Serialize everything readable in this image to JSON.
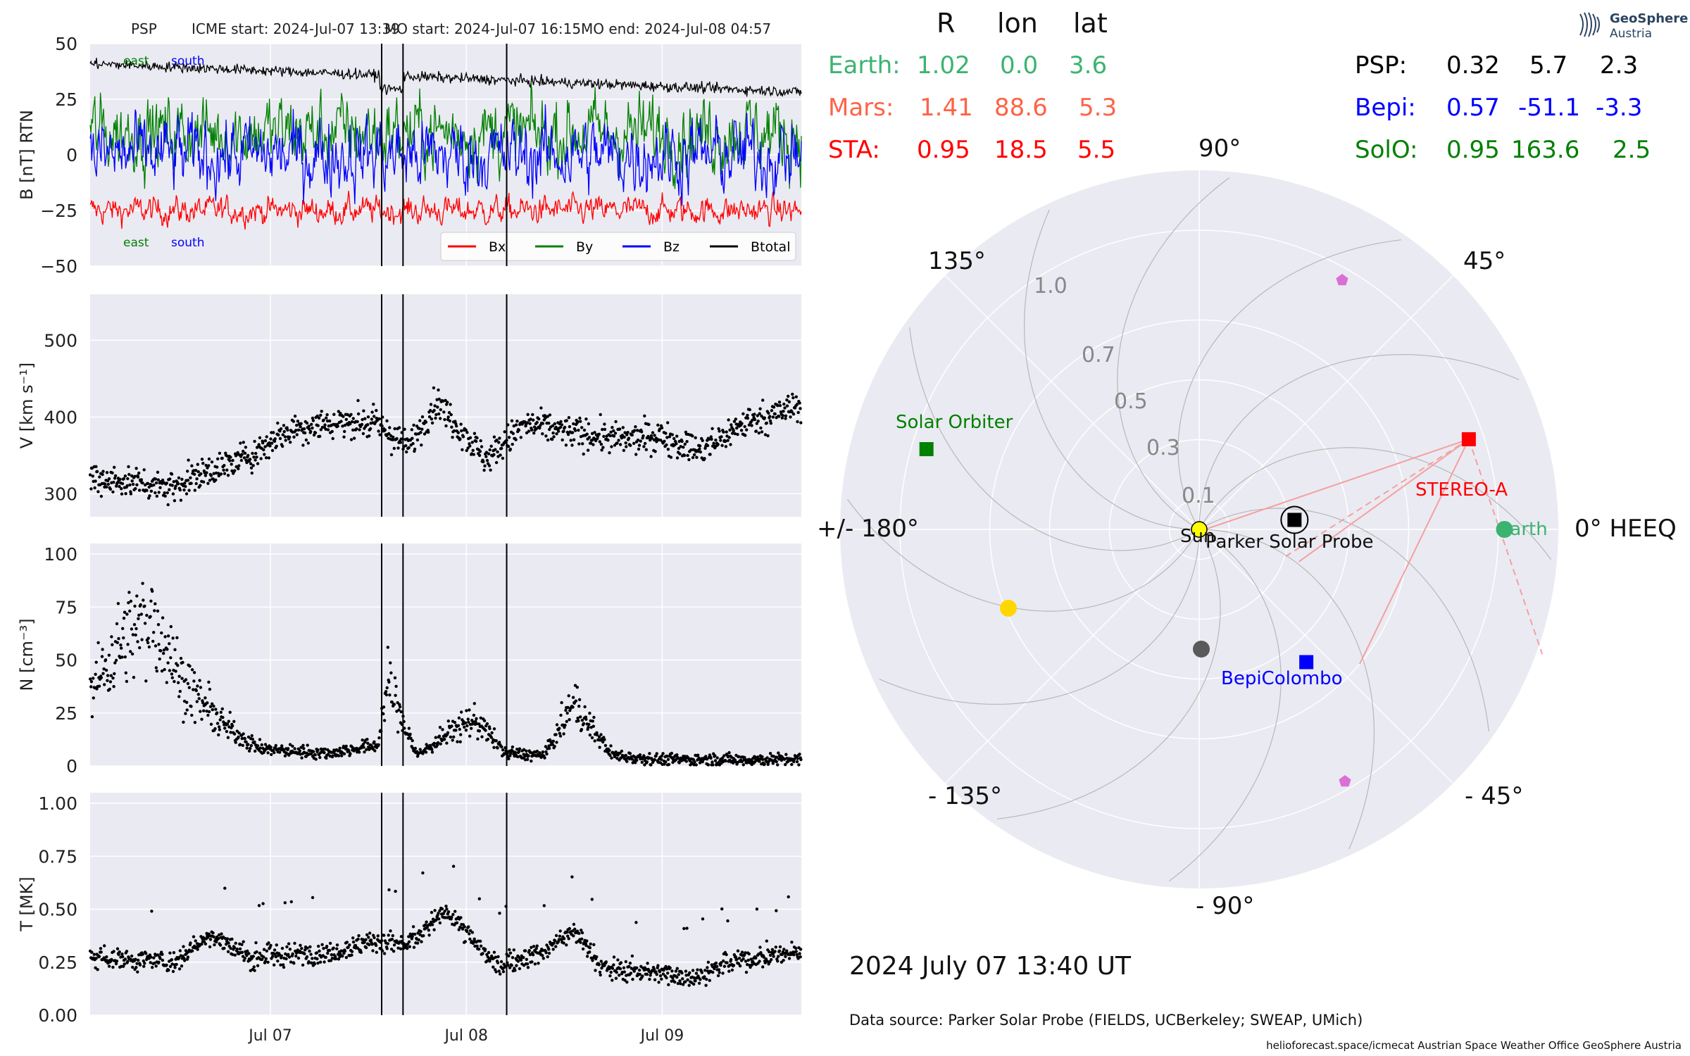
{
  "header": {
    "spacecraft": "PSP",
    "icme_start": "ICME start: 2024-Jul-07 13:39",
    "mo_start": "MO start: 2024-Jul-07 16:15",
    "mo_end": "MO end: 2024-Jul-08 04:57"
  },
  "logo": {
    "line1": "GeoSphere",
    "line2": "Austria"
  },
  "colors": {
    "bx": "#ff0000",
    "by": "#008000",
    "bz": "#0000ff",
    "btotal": "#000000",
    "panel_bg": "#eaeaf2",
    "grid": "#ffffff",
    "earth": "#3cb371",
    "mars": "#ff6347",
    "sta": "#ff0000",
    "psp": "#000000",
    "bepi": "#0000ff",
    "solo": "#008000",
    "sun": "#ffff00"
  },
  "chart_data": [
    {
      "type": "line",
      "id": "mag",
      "ylabel": "B [nT] RTN",
      "ylim": [
        -50,
        50
      ],
      "yticks": [
        "50",
        "25",
        "0",
        "−25",
        "−50"
      ],
      "ytick_values": [
        50,
        25,
        0,
        -25,
        -50
      ],
      "xlim_days": [
        6.08,
        9.71
      ],
      "series": [
        {
          "name": "Bx",
          "color": "#ff0000",
          "level": -25
        },
        {
          "name": "By",
          "color": "#008000",
          "level": 10
        },
        {
          "name": "Bz",
          "color": "#0000ff",
          "level": 0
        },
        {
          "name": "Btotal",
          "color": "#000000",
          "level": 40
        }
      ],
      "annotations": {
        "east_top": "east",
        "south_top": "south",
        "east_bottom": "east",
        "south_bottom": "south"
      },
      "legend": "lower-right"
    },
    {
      "type": "scatter",
      "id": "vel",
      "ylabel": "V [km s⁻¹]",
      "ylim": [
        270,
        560
      ],
      "yticks": [
        "500",
        "400",
        "300"
      ],
      "ytick_values": [
        500,
        400,
        300
      ],
      "trend": [
        [
          6.08,
          320
        ],
        [
          6.5,
          310
        ],
        [
          6.9,
          350
        ],
        [
          7.1,
          385
        ],
        [
          7.4,
          395
        ],
        [
          7.55,
          390
        ],
        [
          7.7,
          360
        ],
        [
          7.85,
          420
        ],
        [
          8.1,
          345
        ],
        [
          8.3,
          390
        ],
        [
          8.55,
          380
        ],
        [
          8.8,
          370
        ],
        [
          9.0,
          375
        ],
        [
          9.2,
          355
        ],
        [
          9.4,
          390
        ],
        [
          9.71,
          415
        ]
      ]
    },
    {
      "type": "scatter",
      "id": "den",
      "ylabel": "N [cm⁻³]",
      "ylim": [
        0,
        105
      ],
      "yticks": [
        "100",
        "75",
        "50",
        "25",
        "0"
      ],
      "ytick_values": [
        100,
        75,
        50,
        25,
        0
      ],
      "trend": [
        [
          6.08,
          35
        ],
        [
          6.25,
          60
        ],
        [
          6.4,
          70
        ],
        [
          6.55,
          40
        ],
        [
          6.75,
          20
        ],
        [
          6.95,
          8
        ],
        [
          7.3,
          6
        ],
        [
          7.55,
          10
        ],
        [
          7.6,
          40
        ],
        [
          7.68,
          20
        ],
        [
          7.75,
          5
        ],
        [
          7.95,
          18
        ],
        [
          8.05,
          22
        ],
        [
          8.2,
          6
        ],
        [
          8.4,
          5
        ],
        [
          8.55,
          30
        ],
        [
          8.62,
          20
        ],
        [
          8.75,
          5
        ],
        [
          9.0,
          3
        ],
        [
          9.71,
          3
        ]
      ]
    },
    {
      "type": "scatter",
      "id": "temp",
      "ylabel": "T [MK]",
      "ylim": [
        0,
        1.05
      ],
      "yticks": [
        "1.00",
        "0.75",
        "0.50",
        "0.25",
        "0.00"
      ],
      "ytick_values": [
        1.0,
        0.75,
        0.5,
        0.25,
        0.0
      ],
      "xticks": [
        "Jul 07",
        "Jul 08",
        "Jul 09"
      ],
      "xtick_values": [
        7,
        8,
        9
      ],
      "trend": [
        [
          6.08,
          0.28
        ],
        [
          6.5,
          0.25
        ],
        [
          6.7,
          0.38
        ],
        [
          6.9,
          0.27
        ],
        [
          7.3,
          0.3
        ],
        [
          7.55,
          0.35
        ],
        [
          7.7,
          0.33
        ],
        [
          7.9,
          0.5
        ],
        [
          8.15,
          0.23
        ],
        [
          8.4,
          0.3
        ],
        [
          8.55,
          0.4
        ],
        [
          8.7,
          0.22
        ],
        [
          9.0,
          0.2
        ],
        [
          9.15,
          0.18
        ],
        [
          9.4,
          0.26
        ],
        [
          9.71,
          0.3
        ]
      ]
    },
    {
      "type": "polar",
      "id": "positions",
      "angle_labels": {
        "a90": "90°",
        "a45": "45°",
        "a0": "0° HEEQ",
        "am45": "- 45°",
        "am90": "- 90°",
        "am135": "- 135°",
        "a180": "+/- 180°",
        "a135": "135°"
      },
      "radial_labels": {
        "r1": "0.1",
        "r3": "0.3",
        "r5": "0.5",
        "r7": "0.7",
        "r10": "1.0"
      },
      "points": [
        {
          "name": "Sun",
          "r": 0,
          "lon": 0,
          "color": "#ffff00"
        },
        {
          "name": "Parker Solar Probe",
          "r": 0.32,
          "lon": 5.7,
          "color": "#000000"
        },
        {
          "name": "STEREO-A",
          "r": 0.95,
          "lon": 18.5,
          "color": "#ff0000"
        },
        {
          "name": "Earth",
          "r": 1.02,
          "lon": 0.0,
          "color": "#3cb371"
        },
        {
          "name": "BepiColombo",
          "r": 0.57,
          "lon": -51.1,
          "color": "#0000ff"
        },
        {
          "name": "Solar Orbiter",
          "r": 0.95,
          "lon": 163.6,
          "color": "#008000"
        }
      ]
    }
  ],
  "legend": {
    "bx": "Bx",
    "by": "By",
    "bz": "Bz",
    "bt": "Btotal"
  },
  "table": {
    "head_r": "R",
    "head_lon": "lon",
    "head_lat": "lat",
    "earth": {
      "name": "Earth:",
      "r": "1.02",
      "lon": "0.0",
      "lat": "3.6"
    },
    "mars": {
      "name": "Mars:",
      "r": "1.41",
      "lon": "88.6",
      "lat": "5.3"
    },
    "sta": {
      "name": "STA:",
      "r": "0.95",
      "lon": "18.5",
      "lat": "5.5"
    },
    "psp": {
      "name": "PSP:",
      "r": "0.32",
      "lon": "5.7",
      "lat": "2.3"
    },
    "bepi": {
      "name": "Bepi:",
      "r": "0.57",
      "lon": "-51.1",
      "lat": "-3.3"
    },
    "solo": {
      "name": "SolO:",
      "r": "0.95",
      "lon": "163.6",
      "lat": "2.5"
    }
  },
  "labels": {
    "sun": "Sun",
    "psp": "Parker Solar Probe",
    "sta": "STEREO-A",
    "earth": "Earth",
    "bepi": "BepiColombo",
    "solo": "Solar Orbiter"
  },
  "footer": {
    "timestamp": "2024 July 07  13:40 UT",
    "source": "Data source: Parker Solar Probe (FIELDS, UCBerkeley; SWEAP, UMich)",
    "credits": "helioforecast.space/icmecat   Austrian Space Weather Office   GeoSphere Austria"
  }
}
